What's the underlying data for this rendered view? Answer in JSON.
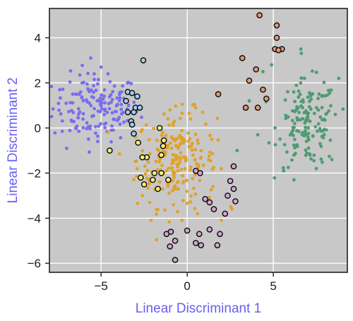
{
  "chart_data": {
    "type": "scatter",
    "title": "",
    "xlabel": "Linear Discriminant 1",
    "ylabel": "Linear Discriminant 2",
    "axis_label_color": "#6a5ef0",
    "background_color": "#c8c8c8",
    "grid": true,
    "grid_color": "#ffffff",
    "xlim": [
      -8,
      9.3
    ],
    "ylim": [
      -6.4,
      5.3
    ],
    "xticks": [
      -5,
      0,
      5
    ],
    "xtick_labels": [
      "−5",
      "0",
      "5"
    ],
    "yticks": [
      -6,
      -4,
      -2,
      0,
      2,
      4
    ],
    "ytick_labels": [
      "−6",
      "−4",
      "−2",
      "0",
      "2",
      "4"
    ],
    "outlined_marker_note": "outlined markers use fill color of their group with black edge",
    "series": [
      {
        "color": "#7b6cf0",
        "outlined": false,
        "cluster": {
          "cx": -5.3,
          "cy": 0.9,
          "sx": 1.25,
          "sy": 0.75,
          "n": 150
        },
        "points": [
          [
            -5.6,
            3.1
          ],
          [
            -6.1,
            2.0
          ],
          [
            -4.6,
            2.4
          ],
          [
            -7.4,
            1.7
          ],
          [
            -3.4,
            1.0
          ],
          [
            -5.2,
            -0.6
          ],
          [
            -7.0,
            -0.9
          ],
          [
            -6.7,
            0.3
          ],
          [
            -4.4,
            -0.1
          ],
          [
            -5.0,
            2.7
          ],
          [
            -5.4,
            2.4
          ],
          [
            -3.8,
            1.6
          ]
        ]
      },
      {
        "color": "#e0a22b",
        "outlined": false,
        "cluster": {
          "cx": -0.6,
          "cy": -1.4,
          "sx": 1.15,
          "sy": 1.05,
          "n": 210
        },
        "points": [
          [
            -2.1,
            -4.1
          ],
          [
            0.6,
            -3.8
          ],
          [
            1.5,
            -2.6
          ],
          [
            -1.0,
            0.8
          ],
          [
            0.2,
            0.4
          ],
          [
            -2.6,
            -3.0
          ],
          [
            -0.8,
            -3.4
          ],
          [
            1.2,
            -3.2
          ],
          [
            2.6,
            -3.6
          ],
          [
            -3.0,
            -0.4
          ],
          [
            0.9,
            0.7
          ],
          [
            -0.3,
            -4.1
          ]
        ]
      },
      {
        "color": "#4f9b73",
        "outlined": false,
        "cluster": {
          "cx": 7.0,
          "cy": 0.2,
          "sx": 0.85,
          "sy": 0.95,
          "n": 150
        },
        "points": [
          [
            4.4,
            2.5
          ],
          [
            4.9,
            2.8
          ],
          [
            6.6,
            3.5
          ],
          [
            8.8,
            2.2
          ],
          [
            7.5,
            -1.8
          ],
          [
            6.2,
            -2.3
          ],
          [
            5.6,
            -1.9
          ],
          [
            8.4,
            -1.4
          ],
          [
            4.1,
            -0.3
          ],
          [
            3.6,
            1.2
          ],
          [
            8.6,
            0.6
          ],
          [
            2.9,
            -1.0
          ]
        ]
      },
      {
        "color": "#9ed0ee",
        "outlined": true,
        "points": [
          [
            -2.55,
            3.0
          ],
          [
            -3.45,
            1.6
          ],
          [
            -3.2,
            1.55
          ],
          [
            -2.9,
            1.4
          ],
          [
            -3.55,
            1.2
          ],
          [
            -3.0,
            0.9
          ],
          [
            -2.75,
            0.9
          ],
          [
            -3.45,
            0.7
          ],
          [
            -3.1,
            0.7
          ],
          [
            -3.25,
            0.3
          ],
          [
            -3.2,
            0.15
          ],
          [
            -3.1,
            -0.25
          ]
        ]
      },
      {
        "color": "#f5ec7a",
        "outlined": true,
        "points": [
          [
            -4.5,
            -1.0
          ],
          [
            -1.6,
            0.0
          ],
          [
            -2.85,
            -0.65
          ],
          [
            -1.35,
            -0.55
          ],
          [
            -1.4,
            -0.8
          ],
          [
            -1.5,
            -1.2
          ],
          [
            -2.35,
            -1.3
          ],
          [
            -2.6,
            -1.3
          ],
          [
            -2.7,
            -2.2
          ],
          [
            -2.5,
            -2.5
          ],
          [
            -1.9,
            -2.0
          ],
          [
            -1.5,
            -2.0
          ],
          [
            -2.0,
            -2.3
          ],
          [
            -1.7,
            -2.7
          ],
          [
            -1.1,
            -2.3
          ]
        ]
      },
      {
        "color": "#d4a6d2",
        "outlined": true,
        "points": [
          [
            2.7,
            -1.7
          ],
          [
            0.5,
            -1.9
          ],
          [
            0.75,
            -2.0
          ],
          [
            2.5,
            -2.35
          ],
          [
            2.7,
            -2.7
          ],
          [
            2.35,
            -3.0
          ],
          [
            1.05,
            -3.15
          ],
          [
            1.3,
            -3.3
          ],
          [
            2.8,
            -3.25
          ],
          [
            1.55,
            -3.6
          ],
          [
            2.2,
            -3.8
          ],
          [
            -1.2,
            -4.7
          ],
          [
            -0.95,
            -4.6
          ],
          [
            0.0,
            -4.55
          ],
          [
            1.3,
            -4.5
          ],
          [
            0.7,
            -4.7
          ],
          [
            1.9,
            -4.7
          ],
          [
            -0.7,
            -5.0
          ],
          [
            0.8,
            -5.2
          ],
          [
            1.75,
            -5.2
          ],
          [
            0.5,
            -5.1
          ],
          [
            -1.0,
            -5.25
          ],
          [
            -0.7,
            -5.85
          ]
        ]
      },
      {
        "color": "#e49a74",
        "outlined": true,
        "points": [
          [
            4.2,
            5.0
          ],
          [
            5.2,
            4.55
          ],
          [
            5.2,
            4.0
          ],
          [
            5.1,
            3.5
          ],
          [
            5.5,
            3.5
          ],
          [
            5.3,
            3.45
          ],
          [
            3.2,
            3.1
          ],
          [
            4.0,
            2.6
          ],
          [
            3.6,
            2.1
          ],
          [
            1.8,
            1.5
          ],
          [
            4.4,
            1.7
          ],
          [
            3.4,
            0.9
          ],
          [
            4.1,
            0.9
          ],
          [
            4.6,
            1.3
          ]
        ]
      }
    ]
  }
}
